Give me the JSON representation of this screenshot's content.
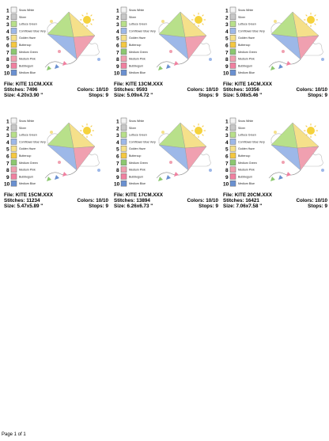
{
  "designs": [
    {
      "file": "File: KITE 11CM.XXX",
      "stitches": "Stitches: 7496",
      "colors": "Colors: 10/10",
      "size": "Size: 4.20x3.90 \"",
      "stops": "Stops: 9",
      "threads": [
        {
          "number": "1",
          "name": "Snow White",
          "color": "#f4f4f4"
        },
        {
          "number": "2",
          "name": "Silver",
          "color": "#c8c8c8"
        },
        {
          "number": "3",
          "name": "Lettuce Green",
          "color": "#b8e08a"
        },
        {
          "number": "4",
          "name": "Cornflower Blue Very",
          "color": "#9db8e8"
        },
        {
          "number": "5",
          "name": "Golden Haze",
          "color": "#f5e08a"
        },
        {
          "number": "6",
          "name": "Buttercup",
          "color": "#f5c840"
        },
        {
          "number": "7",
          "name": "Medium Green",
          "color": "#8cc870"
        },
        {
          "number": "8",
          "name": "Medium Pink",
          "color": "#f0a0b0"
        },
        {
          "number": "9",
          "name": "Bubblegum",
          "color": "#f080a0"
        },
        {
          "number": "10",
          "name": "Medium Blue",
          "color": "#6a90d0"
        }
      ]
    },
    {
      "file": "File: KITE 13CM.XXX",
      "stitches": "Stitches: 9593",
      "colors": "Colors: 10/10",
      "size": "Size: 5.09x4.72 \"",
      "stops": "Stops: 9",
      "threads": [
        {
          "number": "1",
          "name": "Snow White",
          "color": "#f4f4f4"
        },
        {
          "number": "2",
          "name": "Silver",
          "color": "#c8c8c8"
        },
        {
          "number": "3",
          "name": "Lettuce Green",
          "color": "#b8e08a"
        },
        {
          "number": "4",
          "name": "Cornflower Blue Very",
          "color": "#9db8e8"
        },
        {
          "number": "5",
          "name": "Golden Haze",
          "color": "#f5e08a"
        },
        {
          "number": "6",
          "name": "Buttercup",
          "color": "#f5c840"
        },
        {
          "number": "7",
          "name": "Medium Green",
          "color": "#8cc870"
        },
        {
          "number": "8",
          "name": "Medium Pink",
          "color": "#f0a0b0"
        },
        {
          "number": "9",
          "name": "Bubblegum",
          "color": "#f080a0"
        },
        {
          "number": "10",
          "name": "Medium Blue",
          "color": "#6a90d0"
        }
      ]
    },
    {
      "file": "File: KITE 14CM.XXX",
      "stitches": "Stitches: 10356",
      "colors": "Colors: 10/10",
      "size": "Size: 5.08x5.46 \"",
      "stops": "Stops: 9",
      "threads": [
        {
          "number": "1",
          "name": "Snow White",
          "color": "#f4f4f4"
        },
        {
          "number": "2",
          "name": "Silver",
          "color": "#c8c8c8"
        },
        {
          "number": "3",
          "name": "Lettuce Green",
          "color": "#b8e08a"
        },
        {
          "number": "4",
          "name": "Cornflower Blue Very",
          "color": "#9db8e8"
        },
        {
          "number": "5",
          "name": "Golden Haze",
          "color": "#f5e08a"
        },
        {
          "number": "6",
          "name": "Buttercup",
          "color": "#f5c840"
        },
        {
          "number": "7",
          "name": "Medium Green",
          "color": "#8cc870"
        },
        {
          "number": "8",
          "name": "Medium Pink",
          "color": "#f0a0b0"
        },
        {
          "number": "9",
          "name": "Bubblegum",
          "color": "#f080a0"
        },
        {
          "number": "10",
          "name": "Medium Blue",
          "color": "#6a90d0"
        }
      ]
    },
    {
      "file": "File: KITE 15CM.XXX",
      "stitches": "Stitches: 11234",
      "colors": "Colors: 10/10",
      "size": "Size: 5.47x5.89 \"",
      "stops": "Stops: 9",
      "threads": [
        {
          "number": "1",
          "name": "Snow White",
          "color": "#f4f4f4"
        },
        {
          "number": "2",
          "name": "Silver",
          "color": "#c8c8c8"
        },
        {
          "number": "3",
          "name": "Lettuce Green",
          "color": "#b8e08a"
        },
        {
          "number": "4",
          "name": "Cornflower Blue Very",
          "color": "#9db8e8"
        },
        {
          "number": "5",
          "name": "Golden Haze",
          "color": "#f5e08a"
        },
        {
          "number": "6",
          "name": "Buttercup",
          "color": "#f5c840"
        },
        {
          "number": "7",
          "name": "Medium Green",
          "color": "#8cc870"
        },
        {
          "number": "8",
          "name": "Medium Pink",
          "color": "#f0a0b0"
        },
        {
          "number": "9",
          "name": "Bubblegum",
          "color": "#f080a0"
        },
        {
          "number": "10",
          "name": "Medium Blue",
          "color": "#6a90d0"
        }
      ]
    },
    {
      "file": "File: KITE 17CM.XXX",
      "stitches": "Stitches: 13894",
      "colors": "Colors: 10/10",
      "size": "Size: 6.26x6.73 \"",
      "stops": "Stops: 9",
      "threads": [
        {
          "number": "1",
          "name": "Snow White",
          "color": "#f4f4f4"
        },
        {
          "number": "2",
          "name": "Silver",
          "color": "#c8c8c8"
        },
        {
          "number": "3",
          "name": "Lettuce Green",
          "color": "#b8e08a"
        },
        {
          "number": "4",
          "name": "Cornflower Blue Very",
          "color": "#9db8e8"
        },
        {
          "number": "5",
          "name": "Golden Haze",
          "color": "#f5e08a"
        },
        {
          "number": "6",
          "name": "Buttercup",
          "color": "#f5c840"
        },
        {
          "number": "7",
          "name": "Medium Green",
          "color": "#8cc870"
        },
        {
          "number": "8",
          "name": "Medium Pink",
          "color": "#f0a0b0"
        },
        {
          "number": "9",
          "name": "Bubblegum",
          "color": "#f080a0"
        },
        {
          "number": "10",
          "name": "Medium Blue",
          "color": "#6a90d0"
        }
      ]
    },
    {
      "file": "File: KITE 20CM.XXX",
      "stitches": "Stitches: 16421",
      "colors": "Colors: 10/10",
      "size": "Size: 7.06x7.58 \"",
      "stops": "Stops: 9",
      "threads": [
        {
          "number": "1",
          "name": "Snow White",
          "color": "#f4f4f4"
        },
        {
          "number": "2",
          "name": "Silver",
          "color": "#c8c8c8"
        },
        {
          "number": "3",
          "name": "Lettuce Green",
          "color": "#b8e08a"
        },
        {
          "number": "4",
          "name": "Cornflower Blue Very",
          "color": "#9db8e8"
        },
        {
          "number": "5",
          "name": "Golden Haze",
          "color": "#f5e08a"
        },
        {
          "number": "6",
          "name": "Buttercup",
          "color": "#f5c840"
        },
        {
          "number": "7",
          "name": "Medium Green",
          "color": "#8cc870"
        },
        {
          "number": "8",
          "name": "Medium Pink",
          "color": "#f0a0b0"
        },
        {
          "number": "9",
          "name": "Bubblegum",
          "color": "#f080a0"
        },
        {
          "number": "10",
          "name": "Medium Blue",
          "color": "#6a90d0"
        }
      ]
    }
  ],
  "footer": "Page 1 of 1"
}
